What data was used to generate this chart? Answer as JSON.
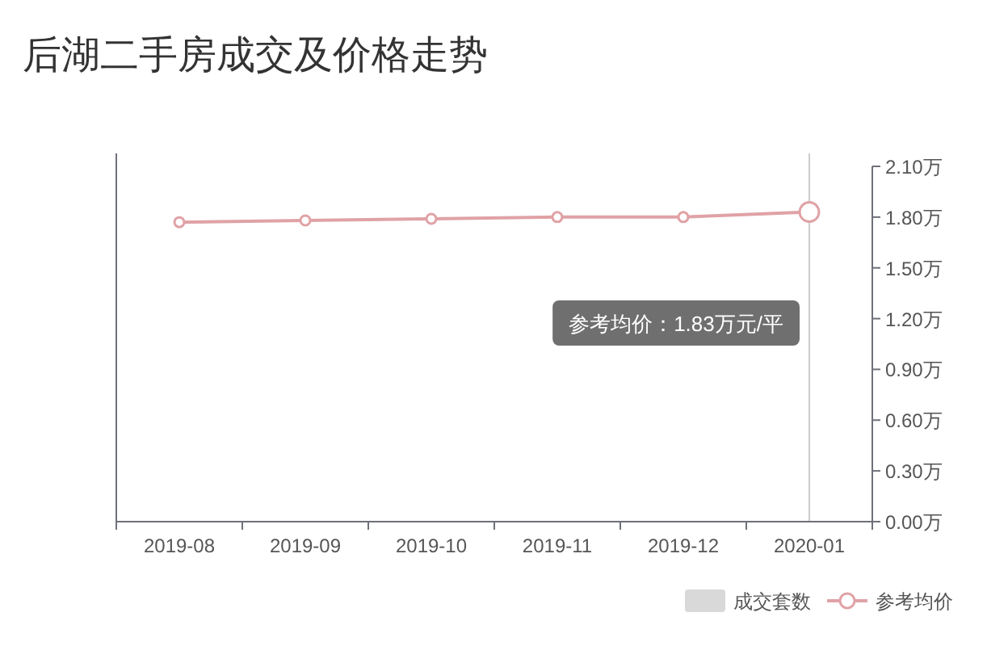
{
  "chart_data": {
    "type": "line",
    "title": "后湖二手房成交及价格走势",
    "categories": [
      "2019-08",
      "2019-09",
      "2019-10",
      "2019-11",
      "2019-12",
      "2020-01"
    ],
    "series": [
      {
        "name": "成交套数",
        "type": "bar",
        "color": "#d9d9d9",
        "values": [
          null,
          null,
          null,
          null,
          null,
          null
        ]
      },
      {
        "name": "参考均价",
        "color": "#e0a2a6",
        "values": [
          1.77,
          1.78,
          1.79,
          1.8,
          1.8,
          1.83
        ]
      }
    ],
    "ylim": [
      0,
      2.1
    ],
    "yticks": [
      {
        "value": 0,
        "label": "0.00万"
      },
      {
        "value": 0.3,
        "label": "0.30万"
      },
      {
        "value": 0.6,
        "label": "0.60万"
      },
      {
        "value": 0.9,
        "label": "0.90万"
      },
      {
        "value": 1.2,
        "label": "1.20万"
      },
      {
        "value": 1.5,
        "label": "1.50万"
      },
      {
        "value": 1.8,
        "label": "1.80万"
      },
      {
        "value": 2.1,
        "label": "2.10万"
      }
    ],
    "marker": "circle",
    "legend": "bottom right",
    "ref_lines": [
      {
        "axis": "x",
        "value": "2020-01",
        "color": "#cccccc"
      }
    ],
    "annotations": [
      "参考均价：1.83万元/平"
    ]
  }
}
